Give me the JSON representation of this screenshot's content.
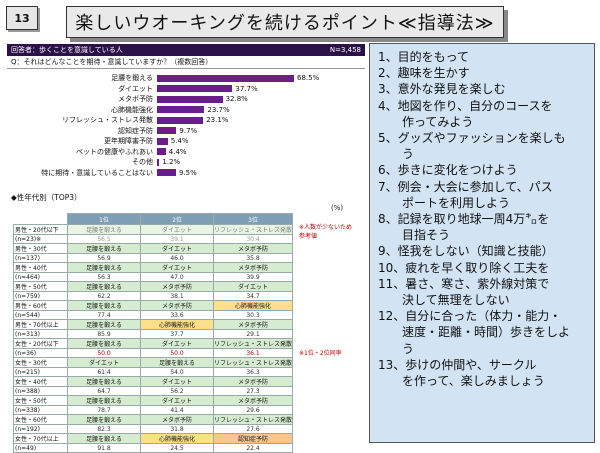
{
  "slide_number": "13",
  "title": "楽しいウオーキングを続けるポイント≪指導法≫",
  "survey": {
    "header_left": "回答者：歩くことを意識している人",
    "header_right": "N=3,458",
    "question": "Q：それはどんなことを期待・意識していますか？（複数回答）",
    "bars": [
      {
        "label": "足腰を鍛える",
        "value": 68.5,
        "display": "68.5%"
      },
      {
        "label": "ダイエット",
        "value": 37.7,
        "display": "37.7%"
      },
      {
        "label": "メタボ予防",
        "value": 32.8,
        "display": "32.8%"
      },
      {
        "label": "心肺機能強化",
        "value": 23.7,
        "display": "23.7%"
      },
      {
        "label": "リフレッシュ・ストレス発散",
        "value": 23.1,
        "display": "23.1%"
      },
      {
        "label": "認知症予防",
        "value": 9.7,
        "display": "9.7%"
      },
      {
        "label": "更年期障害予防",
        "value": 5.4,
        "display": "5.4%"
      },
      {
        "label": "ペットの健康やふれあい",
        "value": 4.4,
        "display": "4.4%"
      },
      {
        "label": "その他",
        "value": 1.2,
        "display": "1.2%"
      },
      {
        "label": "特に期待・意識していることはない",
        "value": 9.5,
        "display": "9.5%"
      }
    ],
    "section_title": "◆性年代別（TOP3）",
    "unit": "(%)",
    "columns": [
      "1位",
      "2位",
      "3位"
    ],
    "notes": {
      "small_sample": "※人数が少ないため参考値",
      "tie": "※1位・2位同率"
    },
    "groups": [
      {
        "label": "男性・20代以下",
        "n": "(n=23)※",
        "items": [
          "足腰を鍛える",
          "ダイエット",
          "リフレッシュ・ストレス発散"
        ],
        "values": [
          "56.5",
          "39.1",
          "30.4"
        ],
        "faded": true
      },
      {
        "label": "男性・30代",
        "n": "(n=137)",
        "items": [
          "足腰を鍛える",
          "ダイエット",
          "メタボ予防"
        ],
        "values": [
          "56.9",
          "46.0",
          "35.8"
        ]
      },
      {
        "label": "男性・40代",
        "n": "(n=464)",
        "items": [
          "足腰を鍛える",
          "ダイエット",
          "メタボ予防"
        ],
        "values": [
          "56.3",
          "47.0",
          "39.9"
        ]
      },
      {
        "label": "男性・50代",
        "n": "(n=759)",
        "items": [
          "足腰を鍛える",
          "メタボ予防",
          "ダイエット"
        ],
        "values": [
          "62.2",
          "38.1",
          "34.7"
        ]
      },
      {
        "label": "男性・60代",
        "n": "(n=544)",
        "items": [
          "足腰を鍛える",
          "メタボ予防",
          "心肺機能強化"
        ],
        "values": [
          "77.4",
          "33.6",
          "30.3"
        ]
      },
      {
        "label": "男性・70代以上",
        "n": "(n=313)",
        "items": [
          "足腰を鍛える",
          "心肺機能強化",
          "メタボ予防"
        ],
        "values": [
          "85.9",
          "37.7",
          "29.1"
        ]
      },
      {
        "label": "女性・20代以下",
        "n": "(n=36)",
        "items": [
          "足腰を鍛える",
          "ダイエット",
          "リフレッシュ・ストレス発散"
        ],
        "values": [
          "50.0",
          "50.0",
          "36.1"
        ],
        "red": true
      },
      {
        "label": "女性・30代",
        "n": "(n=215)",
        "items": [
          "ダイエット",
          "足腰を鍛える",
          "リフレッシュ・ストレス発散"
        ],
        "values": [
          "61.4",
          "54.0",
          "36.3"
        ]
      },
      {
        "label": "女性・40代",
        "n": "(n=388)",
        "items": [
          "足腰を鍛える",
          "ダイエット",
          "メタボ予防"
        ],
        "values": [
          "64.7",
          "56.2",
          "27.3"
        ]
      },
      {
        "label": "女性・50代",
        "n": "(n=338)",
        "items": [
          "足腰を鍛える",
          "ダイエット",
          "メタボ予防"
        ],
        "values": [
          "78.7",
          "41.4",
          "29.6"
        ]
      },
      {
        "label": "女性・60代",
        "n": "(n=192)",
        "items": [
          "足腰を鍛える",
          "メタボ予防",
          "リフレッシュ・ストレス発散"
        ],
        "values": [
          "82.3",
          "31.8",
          "27.6"
        ]
      },
      {
        "label": "女性・70代以上",
        "n": "(n=49)",
        "items": [
          "足腰を鍛える",
          "心肺機能強化",
          "認知症予防"
        ],
        "values": [
          "91.8",
          "24.5",
          "22.4"
        ]
      }
    ]
  },
  "points": [
    "1、目的をもって",
    "2、趣味を生かす",
    "3、意外な発見を楽しむ",
    "4、地図を作り、自分のコースを",
    "　　作ってみよう",
    "5、グッズやファッションを楽しも",
    "　　う",
    "6、歩きに変化をつけよう",
    "7、例会・大会に参加して、パス",
    "　　ポートを利用しよう",
    "8、記録を取り地球一周4万㌔を",
    "　　目指そう",
    "9、怪我をしない（知識と技能）",
    "10、疲れを早く取り除く工夫を",
    "11、暑さ、寒さ、紫外線対策で",
    "　　決して無理をしない",
    "12、自分に合った（体力・能力・",
    "　　速度・距離・時間）歩きをしよ",
    "　　う",
    "13、歩けの仲間や、サークル",
    "　　を作って、楽しみましょう"
  ]
}
